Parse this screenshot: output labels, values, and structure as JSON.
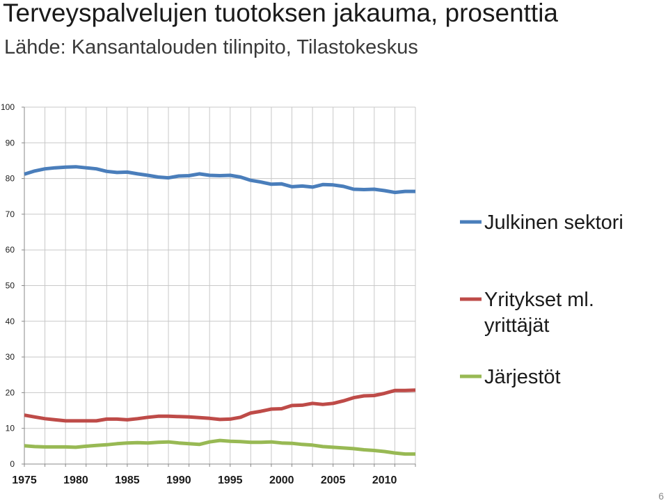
{
  "title": "Terveyspalvelujen tuotoksen jakauma, prosenttia",
  "subtitle": "Lähde: Kansantalouden tilinpito, Tilastokeskus",
  "page_number": "6",
  "chart_data": {
    "type": "line",
    "x": [
      1975,
      1976,
      1977,
      1978,
      1979,
      1980,
      1981,
      1982,
      1983,
      1984,
      1985,
      1986,
      1987,
      1988,
      1989,
      1990,
      1991,
      1992,
      1993,
      1994,
      1995,
      1996,
      1997,
      1998,
      1999,
      2000,
      2001,
      2002,
      2003,
      2004,
      2005,
      2006,
      2007,
      2008,
      2009,
      2010,
      2011,
      2012,
      2013
    ],
    "x_ticks": [
      1975,
      1980,
      1985,
      1990,
      1995,
      2000,
      2005,
      2010
    ],
    "y_ticks": [
      0,
      10,
      20,
      30,
      40,
      50,
      60,
      70,
      80,
      90,
      100
    ],
    "xlim": [
      1975,
      2013
    ],
    "ylim": [
      0,
      100
    ],
    "grid": true,
    "legend_position": "right",
    "series": [
      {
        "name": "Julkinen sektori",
        "color": "#4a7ebb",
        "values": [
          81.2,
          82.1,
          82.7,
          83.0,
          83.2,
          83.3,
          83.0,
          82.7,
          82.0,
          81.7,
          81.8,
          81.3,
          80.9,
          80.4,
          80.2,
          80.7,
          80.8,
          81.3,
          80.9,
          80.8,
          80.9,
          80.4,
          79.5,
          79.0,
          78.4,
          78.5,
          77.7,
          77.9,
          77.6,
          78.3,
          78.2,
          77.8,
          77.0,
          76.9,
          77.0,
          76.6,
          76.1,
          76.4,
          76.4
        ]
      },
      {
        "name": "Yritykset ml. yrittäjät",
        "color": "#be4b48",
        "values": [
          13.7,
          13.2,
          12.7,
          12.4,
          12.1,
          12.1,
          12.1,
          12.1,
          12.6,
          12.6,
          12.4,
          12.7,
          13.1,
          13.4,
          13.4,
          13.3,
          13.2,
          13.0,
          12.8,
          12.5,
          12.6,
          13.1,
          14.3,
          14.8,
          15.4,
          15.5,
          16.4,
          16.5,
          17.0,
          16.7,
          17.0,
          17.7,
          18.6,
          19.1,
          19.2,
          19.8,
          20.6,
          20.6,
          20.7
        ]
      },
      {
        "name": "Järjestöt",
        "color": "#98b954",
        "values": [
          5.1,
          4.9,
          4.8,
          4.8,
          4.8,
          4.7,
          5.0,
          5.2,
          5.4,
          5.7,
          5.9,
          6.0,
          5.9,
          6.1,
          6.2,
          5.9,
          5.7,
          5.5,
          6.2,
          6.6,
          6.4,
          6.3,
          6.1,
          6.1,
          6.2,
          5.9,
          5.8,
          5.5,
          5.3,
          4.9,
          4.7,
          4.5,
          4.3,
          4.0,
          3.8,
          3.5,
          3.1,
          2.8,
          2.8
        ]
      }
    ]
  }
}
